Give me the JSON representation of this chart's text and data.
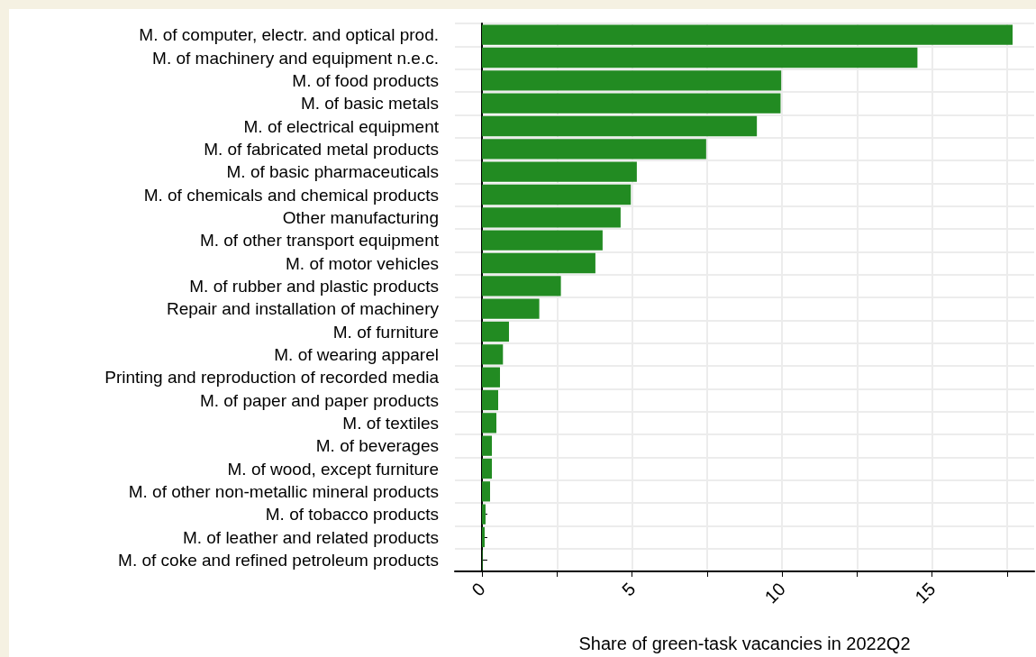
{
  "chart_data": {
    "type": "bar",
    "orientation": "horizontal",
    "xlabel": "Share of green-task vacancies in 2022Q2",
    "categories": [
      "M. of computer, electr. and optical prod.",
      "M. of machinery and equipment n.e.c.",
      "M. of food products",
      "M. of basic metals",
      "M. of electrical equipment",
      "M. of fabricated metal products",
      "M. of basic pharmaceuticals",
      "M. of chemicals and chemical products",
      "Other manufacturing",
      "M. of other transport equipment",
      "M. of motor vehicles",
      "M. of rubber and plastic products",
      "Repair and installation of machinery",
      "M. of furniture",
      "M. of wearing apparel",
      "Printing and reproduction of recorded media",
      "M. of paper and paper products",
      "M. of textiles",
      "M. of beverages",
      "M. of wood, except furniture",
      "M. of other non-metallic mineral products",
      "M. of tobacco products",
      "M. of leather and related products",
      "M. of coke and refined petroleum products"
    ],
    "values": [
      17.68,
      14.51,
      9.97,
      9.95,
      9.16,
      7.47,
      5.16,
      4.96,
      4.62,
      4.02,
      3.78,
      2.63,
      1.91,
      0.9,
      0.7,
      0.6,
      0.54,
      0.48,
      0.33,
      0.33,
      0.27,
      0.12,
      0.09,
      0.02
    ],
    "color": "#228b22",
    "xlim": [
      -0.9,
      18.4
    ],
    "xticks": [
      0,
      {
        "value": 2.5,
        "label": null
      },
      5,
      {
        "value": 7.5,
        "label": null
      },
      10,
      {
        "value": 12.5,
        "label": null
      },
      15,
      {
        "value": 17.5,
        "label": null
      }
    ],
    "grid": true
  }
}
